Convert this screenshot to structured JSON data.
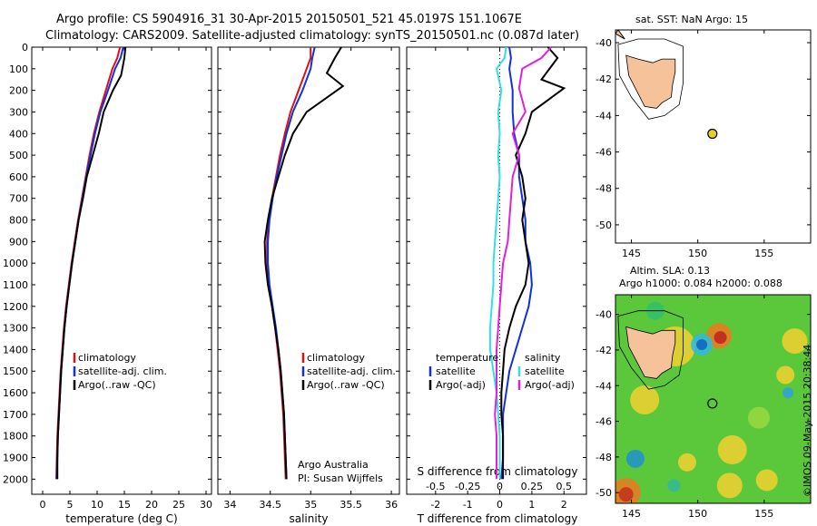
{
  "title": {
    "line1": "Argo profile: CS 5904916_31 30-Apr-2015 20150501_521 45.0197S 151.1067E",
    "line2": "Climatology: CARS2009. Satellite-adjusted climatology: synTS_20150501.nc (0.087d later)"
  },
  "watermark": "©IMOS 09-May-2015 20:38:44",
  "credit": {
    "line1": "Argo Australia",
    "line2": "PI: Susan Wijffels"
  },
  "colors": {
    "climatology": "#e01010",
    "satellite": "#1030e0",
    "argo": "#000000",
    "salinity_sat": "#30e0e8",
    "salinity_argo": "#e020e0",
    "land": "#f5c29a",
    "float": "#e8d020"
  },
  "chart_data": [
    {
      "type": "line",
      "xlabel": "temperature (deg C)",
      "xticks": [
        0,
        5,
        10,
        15,
        20,
        25,
        30
      ],
      "xlim": [
        -2,
        31
      ],
      "ylim": [
        2070,
        0
      ],
      "yticks": [
        0,
        100,
        200,
        300,
        400,
        500,
        600,
        700,
        800,
        900,
        1000,
        1100,
        1200,
        1300,
        1400,
        1500,
        1600,
        1700,
        1800,
        1900,
        2000
      ],
      "legend": [
        "climatology",
        "satellite-adj. clim.",
        "Argo(..raw -QC)"
      ],
      "series": [
        {
          "name": "climatology",
          "x": [
            14.2,
            13.7,
            12.8,
            11.6,
            10.4,
            9.4,
            8.6,
            7.9,
            7.2,
            6.5,
            5.9,
            5.3,
            4.8,
            4.3,
            3.9,
            3.6,
            3.3,
            3.1,
            2.9,
            2.7,
            2.6,
            2.5
          ],
          "y": [
            0,
            50,
            100,
            200,
            300,
            400,
            500,
            600,
            700,
            800,
            900,
            1000,
            1100,
            1200,
            1300,
            1400,
            1500,
            1600,
            1700,
            1800,
            1900,
            2000
          ]
        },
        {
          "name": "satellite-adj. clim.",
          "x": [
            14.8,
            14.3,
            13.3,
            12.0,
            10.6,
            9.6,
            8.8,
            8.0,
            7.3,
            6.6,
            6.0,
            5.4,
            4.9,
            4.4,
            4.0,
            3.7,
            3.4,
            3.2,
            3.0,
            2.8,
            2.7,
            2.6
          ],
          "y": [
            0,
            50,
            100,
            200,
            300,
            400,
            500,
            600,
            700,
            800,
            900,
            1000,
            1100,
            1200,
            1300,
            1400,
            1500,
            1600,
            1700,
            1800,
            1900,
            2000
          ]
        },
        {
          "name": "Argo(..raw -QC)",
          "x": [
            15.2,
            15.0,
            14.4,
            12.9,
            11.2,
            10.3,
            9.2,
            8.1,
            7.4,
            6.6,
            6.0,
            5.4,
            4.9,
            4.4,
            4.0,
            3.7,
            3.4,
            3.2,
            3.0,
            2.8,
            2.7,
            2.7
          ],
          "y": [
            0,
            50,
            130,
            200,
            300,
            400,
            500,
            600,
            700,
            800,
            900,
            1000,
            1100,
            1200,
            1300,
            1400,
            1500,
            1600,
            1700,
            1800,
            1900,
            2000
          ]
        }
      ]
    },
    {
      "type": "line",
      "xlabel": "salinity",
      "xticks": [
        34,
        34.5,
        35,
        35.5,
        36
      ],
      "xlim": [
        33.85,
        36.1
      ],
      "ylim": [
        2070,
        0
      ],
      "legend": [
        "climatology",
        "satellite-adj. clim.",
        "Argo(..raw -QC)"
      ],
      "series": [
        {
          "name": "climatology",
          "x": [
            35.0,
            35.0,
            34.95,
            34.85,
            34.75,
            34.68,
            34.62,
            34.57,
            34.52,
            34.48,
            34.46,
            34.46,
            34.48,
            34.52,
            34.56,
            34.59,
            34.62,
            34.64,
            34.66,
            34.67,
            34.68,
            34.69
          ],
          "y": [
            0,
            50,
            100,
            200,
            300,
            400,
            500,
            600,
            700,
            800,
            900,
            1000,
            1100,
            1200,
            1300,
            1400,
            1500,
            1600,
            1700,
            1800,
            1900,
            2000
          ]
        },
        {
          "name": "satellite-adj. clim.",
          "x": [
            35.05,
            35.02,
            35.0,
            34.9,
            34.78,
            34.7,
            34.64,
            34.58,
            34.53,
            34.49,
            34.47,
            34.47,
            34.49,
            34.53,
            34.57,
            34.6,
            34.63,
            34.65,
            34.67,
            34.68,
            34.69,
            34.7
          ],
          "y": [
            0,
            50,
            100,
            200,
            300,
            400,
            500,
            600,
            700,
            800,
            900,
            1000,
            1100,
            1200,
            1300,
            1400,
            1500,
            1600,
            1700,
            1800,
            1900,
            2000
          ]
        },
        {
          "name": "Argo(..raw -QC)",
          "x": [
            35.38,
            35.3,
            35.2,
            35.4,
            34.95,
            34.78,
            34.68,
            34.6,
            34.52,
            34.47,
            34.43,
            34.44,
            34.47,
            34.52,
            34.56,
            34.6,
            34.63,
            34.65,
            34.67,
            34.68,
            34.69,
            34.7
          ],
          "y": [
            0,
            50,
            120,
            180,
            300,
            400,
            500,
            600,
            700,
            800,
            900,
            1000,
            1100,
            1200,
            1300,
            1400,
            1500,
            1600,
            1700,
            1800,
            1900,
            2000
          ]
        }
      ]
    },
    {
      "type": "line",
      "xlabel": "T difference from climatology",
      "xlabel_top": "S difference from climatology",
      "xticks": [
        -2,
        -1,
        0,
        1,
        2
      ],
      "xticks_top": [
        "-0.5",
        "-0.25",
        "0",
        "0.25",
        "0.5"
      ],
      "xlim": [
        -2.9,
        2.7
      ],
      "ylim": [
        2070,
        0
      ],
      "legend_groups": [
        {
          "heading": "temperature",
          "items": [
            "satellite",
            "Argo(-adj)"
          ]
        },
        {
          "heading": "salinity",
          "items": [
            "satellite",
            "Argo(-adj)"
          ]
        }
      ],
      "series": [
        {
          "name": "temperature satellite",
          "x": [
            0.3,
            0.35,
            0.3,
            0.4,
            0.4,
            0.45,
            0.6,
            0.6,
            0.7,
            0.8,
            0.8,
            0.95,
            1.0,
            0.9,
            0.7,
            0.5,
            0.3,
            0.2,
            0.1,
            0.1,
            0.1,
            0.05
          ],
          "y": [
            0,
            50,
            100,
            200,
            300,
            400,
            500,
            600,
            700,
            800,
            900,
            1000,
            1100,
            1200,
            1300,
            1400,
            1500,
            1600,
            1700,
            1800,
            1900,
            2000
          ]
        },
        {
          "name": "temperature Argo(-adj)",
          "x": [
            1.5,
            1.8,
            1.3,
            2.0,
            1.0,
            0.8,
            0.5,
            0.7,
            0.8,
            0.7,
            0.8,
            0.9,
            0.8,
            0.5,
            0.3,
            0.15,
            0.1,
            0.05,
            0.05,
            0.1,
            0.1,
            0.1
          ],
          "y": [
            0,
            50,
            150,
            190,
            300,
            400,
            500,
            600,
            700,
            800,
            900,
            1000,
            1100,
            1200,
            1300,
            1400,
            1500,
            1600,
            1700,
            1800,
            1900,
            2000
          ]
        },
        {
          "name": "salinity satellite",
          "x": [
            0.2,
            0.15,
            -0.1,
            0.05,
            -0.05,
            0.0,
            -0.05,
            0.0,
            -0.05,
            -0.1,
            -0.15,
            -0.2,
            -0.2,
            -0.25,
            -0.3,
            -0.3,
            -0.2,
            -0.1,
            -0.05,
            0.0,
            0.0,
            0.0
          ],
          "y": [
            0,
            50,
            100,
            200,
            300,
            400,
            500,
            600,
            700,
            800,
            900,
            1000,
            1100,
            1200,
            1300,
            1400,
            1500,
            1600,
            1700,
            1800,
            1900,
            2000
          ]
        },
        {
          "name": "salinity Argo(-adj)",
          "x": [
            1.6,
            1.3,
            0.7,
            0.6,
            0.8,
            0.4,
            0.6,
            0.4,
            0.35,
            0.3,
            0.25,
            0.1,
            0.05,
            0.0,
            -0.05,
            -0.1,
            -0.1,
            -0.1,
            -0.15,
            -0.1,
            -0.1,
            -0.1
          ],
          "y": [
            0,
            50,
            100,
            190,
            300,
            400,
            500,
            600,
            700,
            800,
            900,
            1000,
            1100,
            1200,
            1300,
            1400,
            1500,
            1600,
            1700,
            1800,
            1900,
            2000
          ]
        }
      ]
    },
    {
      "type": "scatter",
      "title": "sat. SST: NaN  Argo: 15",
      "xticks": [
        145,
        150,
        155
      ],
      "yticks": [
        -40,
        -42,
        -44,
        -46,
        -48,
        -50
      ],
      "xlim": [
        143.8,
        158.5
      ],
      "ylim": [
        -51.0,
        -39.3
      ],
      "float": {
        "lon": 151.1,
        "lat": -45.0
      }
    },
    {
      "type": "heatmap",
      "title_line1": "Altim. SLA: 0.13",
      "title_line2": "Argo h1000: 0.084  h2000: 0.088",
      "xticks": [
        145,
        150,
        155
      ],
      "yticks": [
        -40,
        -42,
        -44,
        -46,
        -48,
        -50
      ],
      "xlim": [
        143.8,
        158.5
      ],
      "ylim": [
        -50.6,
        -38.9
      ],
      "float": {
        "lon": 151.1,
        "lat": -45.0
      }
    }
  ]
}
